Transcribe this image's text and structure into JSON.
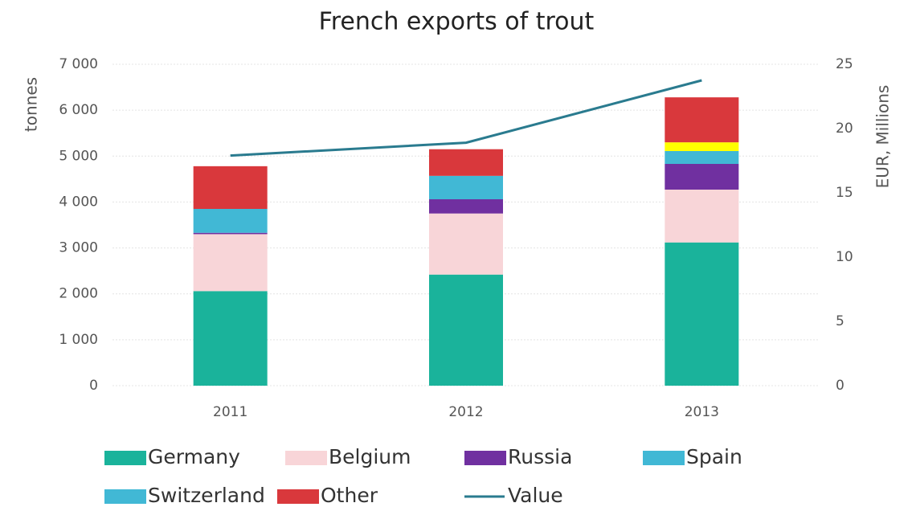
{
  "chart_data": {
    "type": "stacked-bar-line",
    "title": "French exports of trout",
    "ylabel": "tonnes",
    "y2label": "EUR, Millions",
    "categories": [
      "2011",
      "2012",
      "2013"
    ],
    "series": [
      {
        "name": "Germany",
        "color": "#1ab39b",
        "values": [
          2060,
          2420,
          3120
        ]
      },
      {
        "name": "Belgium",
        "color": "#f8d5d8",
        "values": [
          1240,
          1330,
          1150
        ]
      },
      {
        "name": "Russia",
        "color": "#7030a0",
        "values": [
          30,
          310,
          560
        ]
      },
      {
        "name": "Spain",
        "color": "#41b8d5",
        "values": [
          520,
          510,
          280
        ]
      },
      {
        "name": "Switzerland",
        "color": "#41b8d5",
        "colors": [
          "#41b8d5",
          "#41b8d5",
          "#ffff00"
        ],
        "values": [
          0,
          0,
          190
        ]
      },
      {
        "name": "Other",
        "color": "#d9383c",
        "values": [
          930,
          580,
          980
        ]
      },
      {
        "name": "Value",
        "color": "#2a7b8f",
        "axis": "y2",
        "values": [
          17.9,
          18.9,
          23.75
        ]
      }
    ],
    "ylim": [
      0,
      7000
    ],
    "yticks": [
      0,
      {
        "value": 1000,
        "label": "1 000"
      },
      {
        "value": 2000,
        "label": "2 000"
      },
      {
        "value": 3000,
        "label": "3 000"
      },
      {
        "value": 4000,
        "label": "4 000"
      },
      {
        "value": 5000,
        "label": "5 000"
      },
      {
        "value": 6000,
        "label": "6 000"
      },
      {
        "value": 7000,
        "label": "7 000"
      }
    ],
    "y2lim": [
      0,
      25
    ],
    "y2ticks": [
      0,
      5,
      10,
      15,
      20,
      25
    ],
    "grid": true
  }
}
